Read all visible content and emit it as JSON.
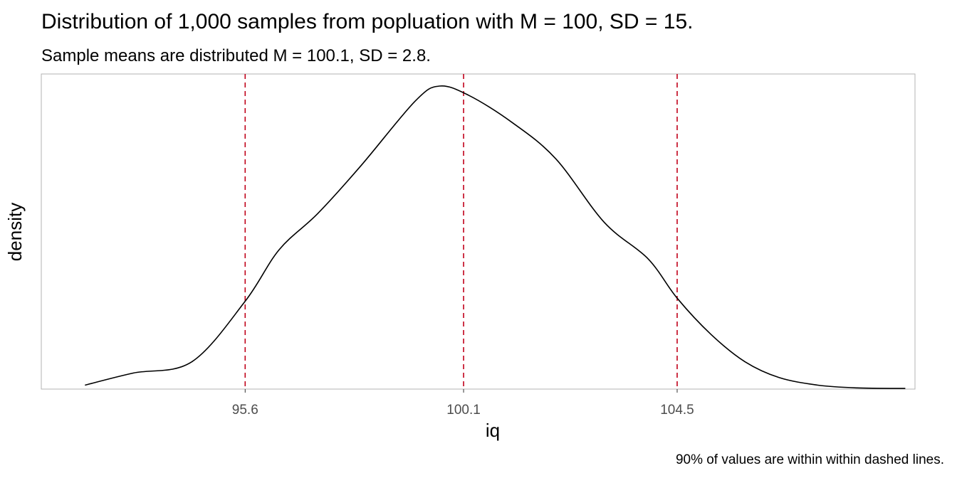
{
  "chart_data": {
    "type": "area",
    "title": "Distribution of 1,000 samples from popluation with M = 100, SD = 15.",
    "subtitle": "Sample means are distributed M = 100.1, SD = 2.8.",
    "caption": "90% of values are within within dashed lines.",
    "xlabel": "iq",
    "ylabel": "density",
    "xlim": [
      91.4,
      109.4
    ],
    "ylim": [
      0,
      1.04
    ],
    "x_ticks": [
      95.6,
      100.1,
      104.5
    ],
    "x_tick_labels": [
      "95.6",
      "100.1",
      "104.5"
    ],
    "y_ticks_shown": false,
    "grid": false,
    "legend": "none",
    "series": [
      {
        "x": [
          92.3,
          93.3,
          94.5,
          95.6,
          96.3,
          97.1,
          98.0,
          99.1,
          99.6,
          100.2,
          101.1,
          102.0,
          103.0,
          103.9,
          104.5,
          105.2,
          105.9,
          106.6,
          107.4,
          108.2,
          109.2
        ],
        "y": [
          0.013,
          0.053,
          0.09,
          0.29,
          0.46,
          0.58,
          0.74,
          0.95,
          1.0,
          0.97,
          0.88,
          0.76,
          0.55,
          0.43,
          0.3,
          0.18,
          0.09,
          0.038,
          0.013,
          0.004,
          0.002
        ]
      }
    ],
    "vlines": [
      {
        "x": 95.6,
        "style": "dashed",
        "color": "#c0001a"
      },
      {
        "x": 100.1,
        "style": "dashed",
        "color": "#c0001a"
      },
      {
        "x": 104.5,
        "style": "dashed",
        "color": "#c0001a"
      }
    ],
    "colors": {
      "line": "#000000",
      "vline": "#c0001a",
      "panel_border": "#b3b3b3",
      "tick_label": "#4d4d4d"
    }
  }
}
